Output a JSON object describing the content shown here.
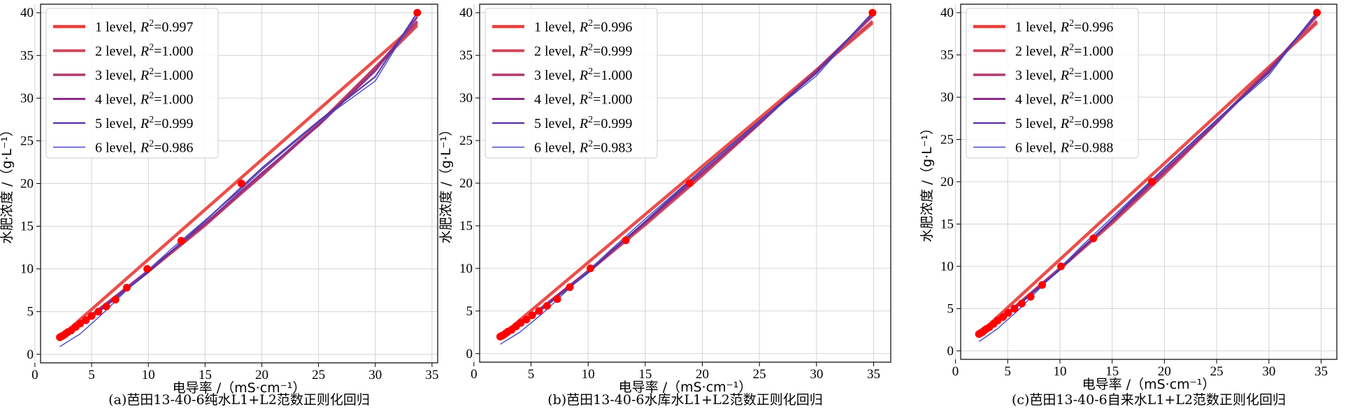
{
  "chart_data": [
    {
      "type": "line",
      "caption": "(a)芭田13-40-6纯水L1+L2范数正则化回归",
      "xlabel": "电导率 /（mS·cm⁻¹）",
      "ylabel": "水肥浓度 /（g·L⁻¹）",
      "xlim": [
        0.5,
        35.5
      ],
      "ylim": [
        -1,
        41
      ],
      "xticks": [
        0,
        5,
        10,
        15,
        20,
        25,
        30,
        35
      ],
      "yticks": [
        0,
        5,
        10,
        15,
        20,
        25,
        30,
        35,
        40
      ],
      "grid": true,
      "legend_position": "top-left",
      "points": {
        "x": [
          2.2,
          2.35,
          2.5,
          2.7,
          2.9,
          3.2,
          3.6,
          4.0,
          4.5,
          5.0,
          5.6,
          6.3,
          7.1,
          8.1,
          9.9,
          12.9,
          18.2,
          33.7
        ],
        "y": [
          2.0,
          2.1,
          2.2,
          2.4,
          2.6,
          2.8,
          3.2,
          3.6,
          4.0,
          4.5,
          5.0,
          5.6,
          6.4,
          7.8,
          10.0,
          13.3,
          20.0,
          40.0
        ]
      },
      "series": [
        {
          "name": "1 level, $R^2$=0.997",
          "label": "1 level,",
          "r2": "0.997",
          "color": "#e8403c",
          "width": 4.5,
          "x": [
            2.2,
            33.7
          ],
          "y": [
            2.0,
            38.8
          ]
        },
        {
          "name": "2 level, $R^2$=1.000",
          "label": "2 level,",
          "r2": "1.000",
          "color": "#d0455a",
          "width": 4.0,
          "x": [
            2.2,
            5,
            10,
            15,
            20,
            25,
            30,
            33.7
          ],
          "y": [
            2.1,
            4.6,
            9.7,
            15.1,
            21.0,
            27.0,
            33.6,
            38.5
          ]
        },
        {
          "name": "3 level, $R^2$=1.000",
          "label": "3 level,",
          "r2": "1.000",
          "color": "#b23a6e",
          "width": 3.5,
          "x": [
            2.2,
            5,
            10,
            15,
            20,
            25,
            30,
            33.7
          ],
          "y": [
            2.0,
            4.6,
            9.8,
            15.2,
            20.9,
            26.9,
            33.5,
            39.0
          ]
        },
        {
          "name": "4 level, $R^2$=1.000",
          "label": "4 level,",
          "r2": "1.000",
          "color": "#8c2d8a",
          "width": 3.0,
          "x": [
            2.2,
            5,
            10,
            15,
            20,
            25,
            30,
            33.7
          ],
          "y": [
            2.0,
            4.5,
            9.8,
            15.3,
            21.2,
            26.8,
            33.2,
            39.5
          ]
        },
        {
          "name": "5 level, $R^2$=0.999",
          "label": "5 level,",
          "r2": "0.999",
          "color": "#5a2fa0",
          "width": 2.2,
          "x": [
            2.2,
            5,
            10,
            15,
            20,
            25,
            30,
            33.7
          ],
          "y": [
            1.8,
            4.3,
            9.6,
            15.6,
            21.8,
            27.3,
            32.5,
            40.0
          ]
        },
        {
          "name": "6 level, $R^2$=0.986",
          "label": "6 level,",
          "r2": "0.986",
          "color": "#4848c8",
          "width": 1.5,
          "x": [
            2.2,
            4,
            6,
            8,
            10,
            12,
            15,
            18,
            20,
            25,
            30,
            33.7
          ],
          "y": [
            0.9,
            2.4,
            4.8,
            7.4,
            9.9,
            12.3,
            15.7,
            19.1,
            21.6,
            27.2,
            32.0,
            40.0
          ]
        }
      ]
    },
    {
      "type": "line",
      "caption": "(b)芭田13-40-6水库水L1+L2范数正则化回归",
      "xlabel": "电导率 /（mS·cm⁻¹）",
      "ylabel": "水肥浓度 /（g·L⁻¹）",
      "xlim": [
        0.5,
        36.5
      ],
      "ylim": [
        -1,
        41
      ],
      "xticks": [
        0,
        5,
        10,
        15,
        20,
        25,
        30,
        35
      ],
      "yticks": [
        0,
        5,
        10,
        15,
        20,
        25,
        30,
        35,
        40
      ],
      "grid": true,
      "legend_position": "top-left",
      "points": {
        "x": [
          2.3,
          2.45,
          2.6,
          2.8,
          3.0,
          3.3,
          3.7,
          4.1,
          4.6,
          5.1,
          5.7,
          6.4,
          7.3,
          8.4,
          10.2,
          13.3,
          18.9,
          34.9
        ],
        "y": [
          2.0,
          2.1,
          2.2,
          2.4,
          2.6,
          2.8,
          3.2,
          3.6,
          4.0,
          4.5,
          5.0,
          5.6,
          6.4,
          7.8,
          10.0,
          13.3,
          20.0,
          40.0
        ]
      },
      "series": [
        {
          "name": "1 level, $R^2$=0.996",
          "label": "1 level,",
          "r2": "0.996",
          "color": "#e8403c",
          "width": 4.5,
          "x": [
            2.3,
            34.9
          ],
          "y": [
            2.0,
            38.8
          ]
        },
        {
          "name": "2 level, $R^2$=0.999",
          "label": "2 level,",
          "r2": "0.999",
          "color": "#d0455a",
          "width": 4.0,
          "x": [
            2.3,
            5,
            10,
            15,
            20,
            25,
            30,
            34.9
          ],
          "y": [
            2.1,
            4.4,
            9.6,
            15.1,
            20.9,
            27.0,
            33.3,
            39.0
          ]
        },
        {
          "name": "3 level, $R^2$=1.000",
          "label": "3 level,",
          "r2": "1.000",
          "color": "#b23a6e",
          "width": 3.5,
          "x": [
            2.3,
            5,
            10,
            15,
            20,
            25,
            30,
            34.9
          ],
          "y": [
            2.0,
            4.4,
            9.7,
            15.3,
            21.1,
            27.0,
            33.3,
            39.6
          ]
        },
        {
          "name": "4 level, $R^2$=1.000",
          "label": "4 level,",
          "r2": "1.000",
          "color": "#8c2d8a",
          "width": 3.0,
          "x": [
            2.3,
            5,
            10,
            15,
            20,
            25,
            30,
            34.9
          ],
          "y": [
            2.0,
            4.3,
            9.7,
            15.4,
            21.3,
            27.0,
            33.1,
            39.8
          ]
        },
        {
          "name": "5 level, $R^2$=0.999",
          "label": "5 level,",
          "r2": "0.999",
          "color": "#5a2fa0",
          "width": 2.2,
          "x": [
            2.3,
            5,
            10,
            15,
            20,
            25,
            30,
            34.9
          ],
          "y": [
            1.9,
            4.2,
            9.5,
            15.5,
            21.6,
            27.3,
            32.9,
            40.0
          ]
        },
        {
          "name": "6 level, $R^2$=0.983",
          "label": "6 level,",
          "r2": "0.983",
          "color": "#4848c8",
          "width": 1.5,
          "x": [
            2.3,
            4,
            6,
            8,
            10,
            12,
            15,
            18,
            20,
            25,
            30,
            34.9
          ],
          "y": [
            1.1,
            2.5,
            4.7,
            7.2,
            9.7,
            12.2,
            15.8,
            19.3,
            21.6,
            27.2,
            32.6,
            40.0
          ]
        }
      ]
    },
    {
      "type": "line",
      "caption": "(c)芭田13-40-6自来水L1+L2范数正则化回归",
      "xlabel": "电导率 /（mS·cm⁻¹）",
      "ylabel": "水肥浓度 /（g·L⁻¹）",
      "xlim": [
        0.5,
        36.5
      ],
      "ylim": [
        -1,
        41
      ],
      "xticks": [
        0,
        5,
        10,
        15,
        20,
        25,
        30,
        35
      ],
      "yticks": [
        0,
        5,
        10,
        15,
        20,
        25,
        30,
        35,
        40
      ],
      "grid": true,
      "legend_position": "top-left",
      "points": {
        "x": [
          2.25,
          2.4,
          2.55,
          2.75,
          2.95,
          3.25,
          3.65,
          4.05,
          4.55,
          5.05,
          5.65,
          6.35,
          7.2,
          8.3,
          10.1,
          13.2,
          18.8,
          34.6
        ],
        "y": [
          2.0,
          2.1,
          2.2,
          2.4,
          2.6,
          2.8,
          3.2,
          3.6,
          4.0,
          4.5,
          5.0,
          5.6,
          6.4,
          7.8,
          10.0,
          13.3,
          20.0,
          40.0
        ]
      },
      "series": [
        {
          "name": "1 level, $R^2$=0.996",
          "label": "1 level,",
          "r2": "0.996",
          "color": "#e8403c",
          "width": 4.5,
          "x": [
            2.25,
            34.6
          ],
          "y": [
            2.0,
            38.8
          ]
        },
        {
          "name": "2 level, $R^2$=1.000",
          "label": "2 level,",
          "r2": "1.000",
          "color": "#d0455a",
          "width": 4.0,
          "x": [
            2.25,
            5,
            10,
            15,
            20,
            25,
            30,
            34.6
          ],
          "y": [
            2.1,
            4.5,
            9.7,
            15.1,
            20.9,
            27.0,
            33.4,
            39.0
          ]
        },
        {
          "name": "3 level, $R^2$=1.000",
          "label": "3 level,",
          "r2": "1.000",
          "color": "#b23a6e",
          "width": 3.5,
          "x": [
            2.25,
            5,
            10,
            15,
            20,
            25,
            30,
            34.6
          ],
          "y": [
            2.0,
            4.5,
            9.8,
            15.3,
            21.1,
            27.0,
            33.3,
            39.6
          ]
        },
        {
          "name": "4 level, $R^2$=1.000",
          "label": "4 level,",
          "r2": "1.000",
          "color": "#8c2d8a",
          "width": 3.0,
          "x": [
            2.25,
            5,
            10,
            15,
            20,
            25,
            30,
            34.6
          ],
          "y": [
            2.0,
            4.4,
            9.7,
            15.4,
            21.3,
            27.0,
            33.1,
            39.8
          ]
        },
        {
          "name": "5 level, $R^2$=0.998",
          "label": "5 level,",
          "r2": "0.998",
          "color": "#5a2fa0",
          "width": 2.2,
          "x": [
            2.25,
            5,
            10,
            15,
            20,
            25,
            30,
            34.6
          ],
          "y": [
            1.9,
            4.3,
            9.6,
            15.5,
            21.6,
            27.3,
            32.9,
            40.0
          ]
        },
        {
          "name": "6 level, $R^2$=0.988",
          "label": "6 level,",
          "r2": "0.988",
          "color": "#4848c8",
          "width": 1.5,
          "x": [
            2.25,
            4,
            6,
            8,
            10,
            12,
            15,
            18,
            20,
            25,
            30,
            34.6
          ],
          "y": [
            1.1,
            2.6,
            4.8,
            7.3,
            9.8,
            12.3,
            15.8,
            19.3,
            21.6,
            27.2,
            32.6,
            40.0
          ]
        }
      ]
    }
  ]
}
